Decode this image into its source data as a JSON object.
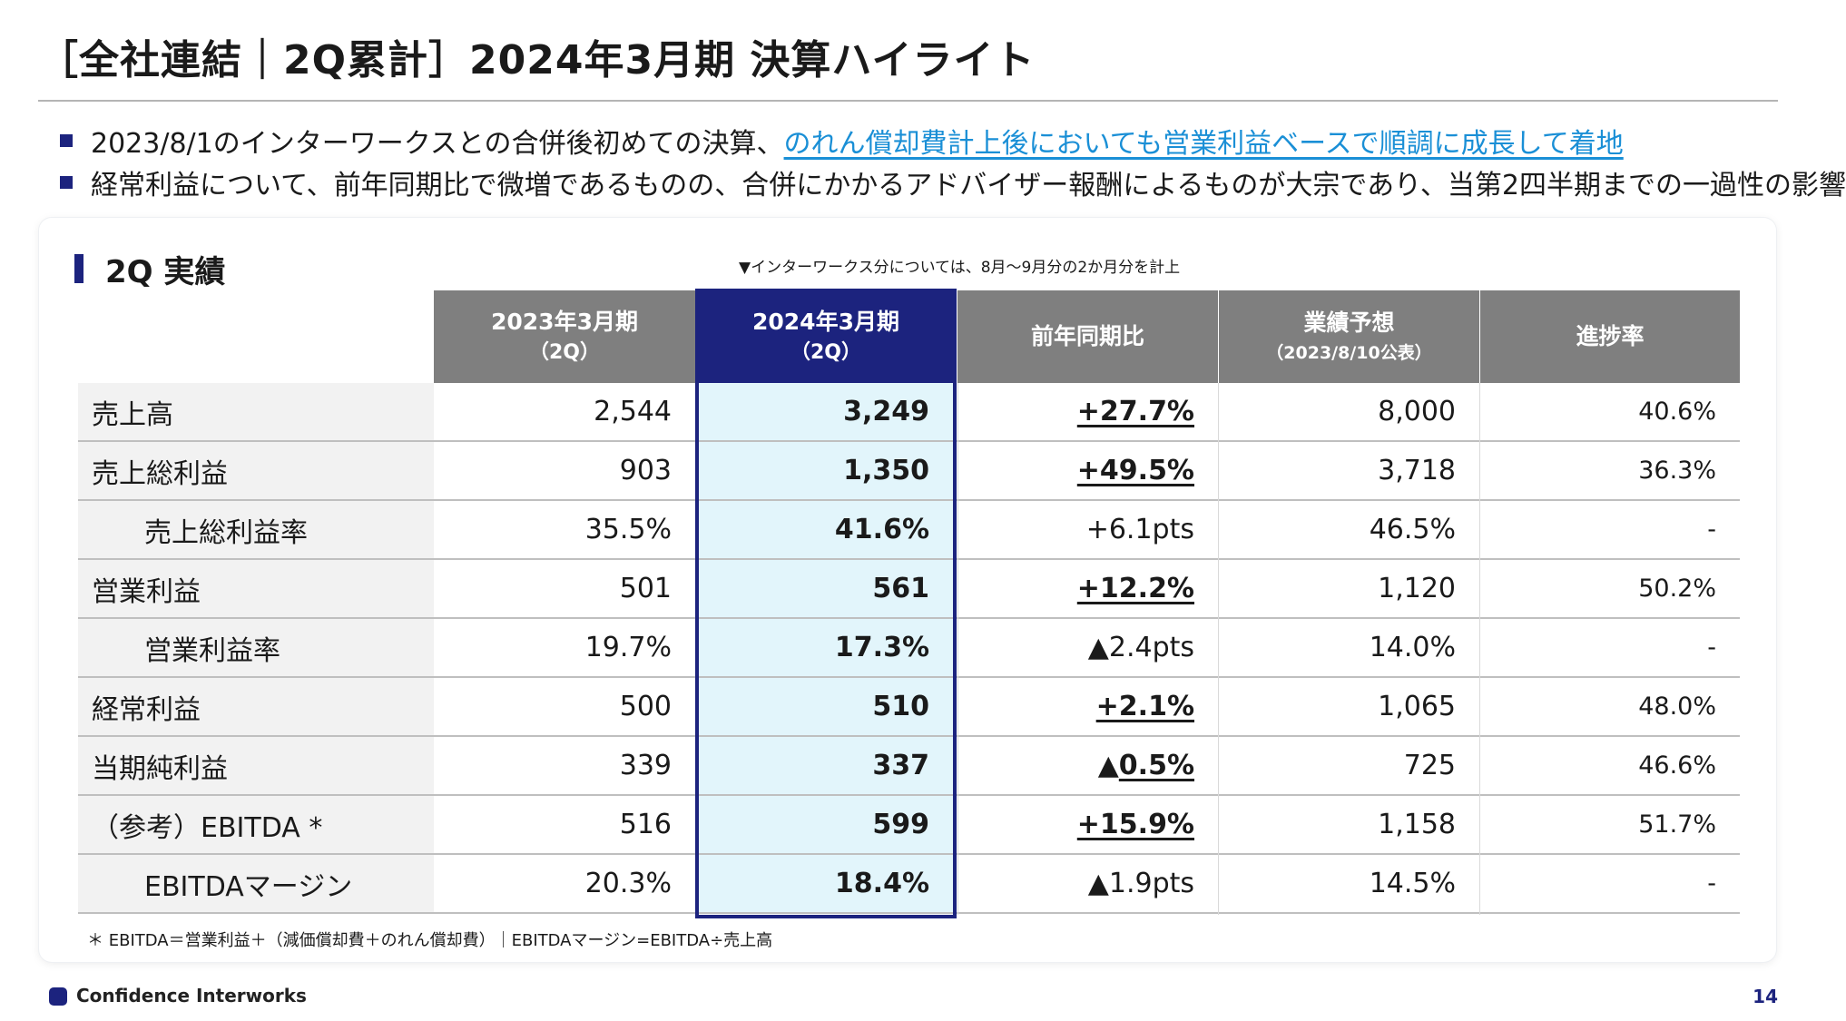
{
  "title": "［全社連結｜2Q累計］2024年3月期 決算ハイライト",
  "bullets": {
    "b1_plain": "2023/8/1のインターワークスとの合併後初めての決算、",
    "b1_highlight": "のれん償却費計上後においても営業利益ベースで順調に成長して着地",
    "b2": "経常利益について、前年同期比で微増であるものの、合併にかかるアドバイザー報酬によるものが大宗であり、当第2四半期までの一過性の影響"
  },
  "section": {
    "title": "2Q 実績",
    "note": "▼インターワークス分については、8月～9月分の2か月分を計上"
  },
  "headers": {
    "prev": {
      "line1": "2023年3月期",
      "line2": "（2Q）"
    },
    "cur": {
      "line1": "2024年3月期",
      "line2": "（2Q）"
    },
    "yoy": {
      "line1": "前年同期比"
    },
    "forecast": {
      "line1": "業績予想",
      "line2": "（2023/8/10公表）"
    },
    "progress": {
      "line1": "進捗率"
    }
  },
  "rows": [
    {
      "label": "売上高",
      "prev": "2,544",
      "cur": "3,249",
      "yoy": "+27.7%",
      "forecast": "8,000",
      "progress": "40.6%"
    },
    {
      "label": "売上総利益",
      "prev": "903",
      "cur": "1,350",
      "yoy": "+49.5%",
      "forecast": "3,718",
      "progress": "36.3%"
    },
    {
      "label": "売上総利益率",
      "prev": "35.5%",
      "cur": "41.6%",
      "yoy": "+6.1pts",
      "forecast": "46.5%",
      "progress": "-"
    },
    {
      "label": "営業利益",
      "prev": "501",
      "cur": "561",
      "yoy": "+12.2%",
      "forecast": "1,120",
      "progress": "50.2%"
    },
    {
      "label": "営業利益率",
      "prev": "19.7%",
      "cur": "17.3%",
      "yoy": "▲2.4pts",
      "forecast": "14.0%",
      "progress": "-"
    },
    {
      "label": "経常利益",
      "prev": "500",
      "cur": "510",
      "yoy": "+2.1%",
      "forecast": "1,065",
      "progress": "48.0%"
    },
    {
      "label": "当期純利益",
      "prev": "339",
      "cur": "337",
      "yoy_mark": "▲",
      "yoy_value": "0.5%",
      "forecast": "725",
      "progress": "46.6%"
    },
    {
      "label": "（参考）EBITDA *",
      "prev": "516",
      "cur": "599",
      "yoy": "+15.9%",
      "forecast": "1,158",
      "progress": "51.7%"
    },
    {
      "label": "EBITDAマージン",
      "prev": "20.3%",
      "cur": "18.4%",
      "yoy": "▲1.9pts",
      "forecast": "14.5%",
      "progress": "-"
    }
  ],
  "footnote": "＊ EBITDA＝営業利益＋（減価償却費＋のれん償却費）｜EBITDAマージン=EBITDA÷売上高",
  "footer": {
    "company": "Confidence Interworks",
    "page": "14"
  },
  "colors": {
    "navy": "#1c237e",
    "header_gray": "#7f7f7f",
    "highlight_blue": "#1a8fd6",
    "current_col_bg": "#e2f5fb",
    "label_bg": "#f2f2f2"
  }
}
